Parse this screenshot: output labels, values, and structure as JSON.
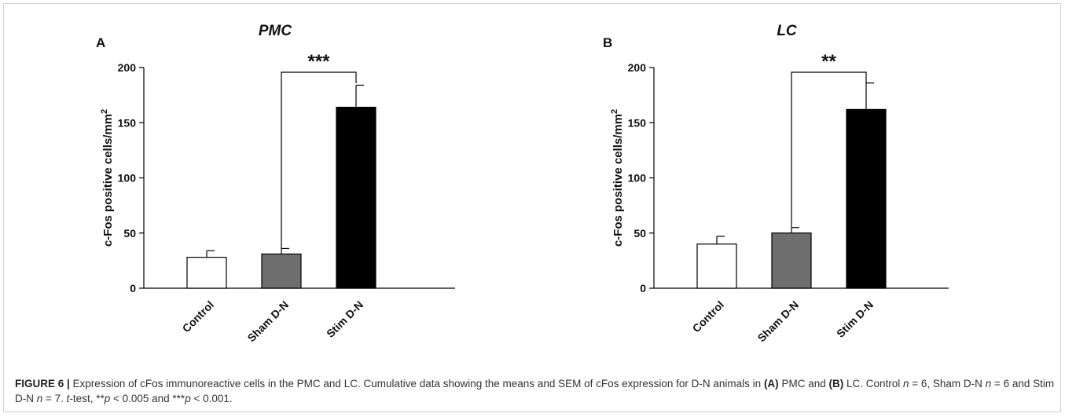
{
  "chart_data": [
    {
      "type": "bar",
      "panel_label": "A",
      "title": "PMC",
      "ylabel": "c-Fos positive cells/mm",
      "ylabel_superscript": "2",
      "categories": [
        "Control",
        "Sham D-N",
        "Stim D-N"
      ],
      "values": [
        28,
        31,
        164
      ],
      "errors": [
        6,
        5,
        20
      ],
      "bar_colors": [
        "#ffffff",
        "#6e6e6e",
        "#000000"
      ],
      "ylim": [
        0,
        200
      ],
      "yticks": [
        0,
        50,
        100,
        150,
        200
      ],
      "significance": {
        "from": "Sham D-N",
        "to": "Stim D-N",
        "label": "***"
      }
    },
    {
      "type": "bar",
      "panel_label": "B",
      "title": "LC",
      "ylabel": "c-Fos positive cells/mm",
      "ylabel_superscript": "2",
      "categories": [
        "Control",
        "Sham D-N",
        "Stim D-N"
      ],
      "values": [
        40,
        50,
        162
      ],
      "errors": [
        7,
        5,
        24
      ],
      "bar_colors": [
        "#ffffff",
        "#6e6e6e",
        "#000000"
      ],
      "ylim": [
        0,
        200
      ],
      "yticks": [
        0,
        50,
        100,
        150,
        200
      ],
      "significance": {
        "from": "Sham D-N",
        "to": "Stim D-N",
        "label": "**"
      }
    }
  ],
  "caption": {
    "figure_label": "FIGURE 6 |",
    "t1": " Expression of cFos immunoreactive cells in the PMC and LC. Cumulative data showing the means and SEM of cFos expression for D-N animals in ",
    "a": "(A)",
    "t2": " PMC and ",
    "b": "(B)",
    "t3": " LC. Control ",
    "n1": "n",
    "t4": " = 6, Sham D-N ",
    "n2": "n",
    "t5": " = 6 and Stim D-N ",
    "n3": "n",
    "t6": " = 7. ",
    "t_italic": "t",
    "t7": "-test, **",
    "p1": "p",
    "t8": " < 0.005 and ***",
    "p2": "p",
    "t9": " < 0.001."
  }
}
